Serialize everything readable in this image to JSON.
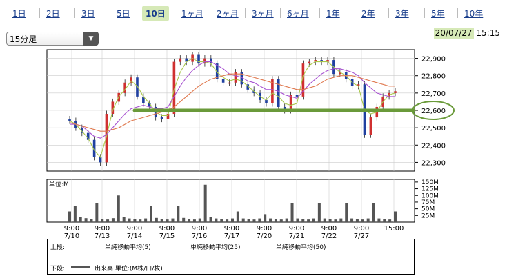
{
  "tabs": [
    {
      "label": "1日"
    },
    {
      "label": "2日"
    },
    {
      "label": "3日"
    },
    {
      "label": "5日"
    },
    {
      "label": "10日",
      "active": true
    },
    {
      "label": "1ヶ月"
    },
    {
      "label": "2ヶ月"
    },
    {
      "label": "3ヶ月"
    },
    {
      "label": "6ヶ月"
    },
    {
      "label": "1年"
    },
    {
      "label": "2年"
    },
    {
      "label": "3年"
    },
    {
      "label": "5年"
    },
    {
      "label": "10年"
    }
  ],
  "interval_select": {
    "value": "15分足",
    "arrow": "▼"
  },
  "datetime": {
    "date": "20/07/27",
    "time": "15:15"
  },
  "legend": {
    "upper_label": "上段:",
    "lower_label": "下段:",
    "sma5": "単純移動平均(5)",
    "sma25": "単純移動平均(25)",
    "sma50": "単純移動平均(50)",
    "volume": "出来高 単位:(M株/口/枚)"
  },
  "colors": {
    "sma5": "#a8c84a",
    "sma25": "#a64fd0",
    "sma50": "#e07a50",
    "highlight": "#6a9a3a",
    "volume": "#555555"
  },
  "chart_data": [
    {
      "type": "candlestick",
      "ylim": [
        22250,
        22950
      ],
      "yticks": [
        22300,
        22400,
        22500,
        22600,
        22700,
        22800,
        22900
      ],
      "ytick_labels": [
        "22,300",
        "22,400",
        "22,500",
        "22,600",
        "22,700",
        "22,800",
        "22,900"
      ],
      "highlight_level": 22600,
      "highlight_label": "22,600",
      "x_labels": [
        {
          "time": "9:00",
          "date": "7/10"
        },
        {
          "time": "9:00",
          "date": "7/13"
        },
        {
          "time": "9:00",
          "date": "7/14"
        },
        {
          "time": "9:00",
          "date": "7/15"
        },
        {
          "time": "9:00",
          "date": "7/16"
        },
        {
          "time": "9:00",
          "date": "7/17"
        },
        {
          "time": "9:00",
          "date": "7/20"
        },
        {
          "time": "9:00",
          "date": "7/21"
        },
        {
          "time": "9:00",
          "date": "7/22"
        },
        {
          "time": "9:00",
          "date": "7/27"
        },
        {
          "time": "15:00",
          "date": ""
        }
      ],
      "close_path": [
        22540,
        22500,
        22470,
        22430,
        22330,
        22300,
        22580,
        22650,
        22700,
        22760,
        22790,
        22680,
        22640,
        22620,
        22560,
        22550,
        22580,
        22880,
        22900,
        22880,
        22920,
        22870,
        22900,
        22870,
        22780,
        22760,
        22760,
        22820,
        22750,
        22720,
        22700,
        22660,
        22640,
        22780,
        22620,
        22600,
        22690,
        22680,
        22870,
        22880,
        22890,
        22880,
        22890,
        22810,
        22820,
        22780,
        22740,
        22750,
        22460,
        22560,
        22620,
        22680,
        22700,
        22710
      ],
      "sma5": [
        22540,
        22520,
        22480,
        22440,
        22370,
        22330,
        22450,
        22600,
        22680,
        22720,
        22770,
        22740,
        22680,
        22640,
        22590,
        22570,
        22570,
        22720,
        22820,
        22880,
        22900,
        22880,
        22880,
        22870,
        22820,
        22790,
        22770,
        22780,
        22770,
        22740,
        22710,
        22680,
        22660,
        22700,
        22680,
        22640,
        22630,
        22640,
        22800,
        22860,
        22880,
        22880,
        22880,
        22850,
        22820,
        22800,
        22760,
        22740,
        22600,
        22580,
        22590,
        22650,
        22690,
        22700
      ],
      "sma25": [
        22520,
        22520,
        22510,
        22480,
        22450,
        22440,
        22460,
        22500,
        22540,
        22580,
        22610,
        22620,
        22630,
        22620,
        22610,
        22610,
        22620,
        22680,
        22740,
        22790,
        22830,
        22860,
        22880,
        22880,
        22860,
        22840,
        22810,
        22800,
        22790,
        22770,
        22760,
        22740,
        22720,
        22720,
        22710,
        22690,
        22680,
        22670,
        22710,
        22750,
        22780,
        22810,
        22830,
        22840,
        22840,
        22830,
        22820,
        22800,
        22760,
        22730,
        22700,
        22690,
        22680,
        22680
      ],
      "sma50": [
        22530,
        22520,
        22510,
        22500,
        22490,
        22480,
        22480,
        22490,
        22500,
        22520,
        22540,
        22550,
        22560,
        22570,
        22580,
        22590,
        22600,
        22620,
        22650,
        22680,
        22710,
        22740,
        22760,
        22780,
        22790,
        22800,
        22810,
        22810,
        22810,
        22800,
        22790,
        22780,
        22770,
        22760,
        22750,
        22740,
        22730,
        22720,
        22720,
        22730,
        22740,
        22760,
        22780,
        22790,
        22800,
        22800,
        22800,
        22790,
        22780,
        22770,
        22760,
        22750,
        22740,
        22740
      ]
    },
    {
      "type": "bar",
      "title": "単位:M",
      "ylim": [
        0,
        160
      ],
      "yticks": [
        25,
        50,
        75,
        100,
        125,
        150
      ],
      "ytick_labels": [
        "25M",
        "50M",
        "75M",
        "100M",
        "125M",
        "150M"
      ],
      "values": [
        40,
        60,
        20,
        15,
        12,
        70,
        12,
        10,
        15,
        100,
        20,
        14,
        12,
        10,
        14,
        60,
        16,
        12,
        10,
        14,
        60,
        16,
        12,
        10,
        14,
        140,
        20,
        14,
        12,
        10,
        14,
        40,
        14,
        12,
        10,
        14,
        30,
        14,
        12,
        10,
        14,
        70,
        14,
        12,
        10,
        14,
        70,
        14,
        12,
        10,
        14,
        70,
        14,
        12,
        10,
        14,
        70,
        14,
        12,
        10,
        40
      ]
    }
  ]
}
